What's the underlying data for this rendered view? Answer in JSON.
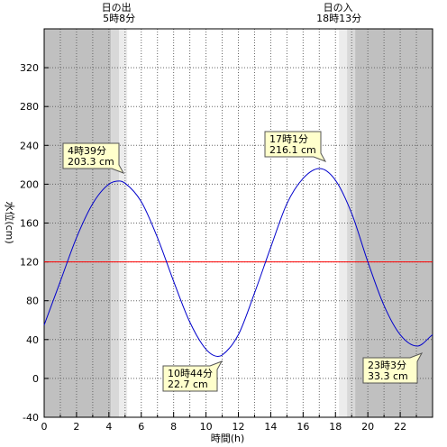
{
  "chart_data": {
    "type": "line",
    "xlabel": "時間(h)",
    "ylabel": "水位(cm)",
    "xlim": [
      0,
      24
    ],
    "ylim": [
      -40,
      360
    ],
    "xticks": [
      0,
      2,
      4,
      6,
      8,
      10,
      12,
      14,
      16,
      18,
      20,
      22
    ],
    "yticks": [
      -40,
      0,
      40,
      80,
      120,
      160,
      200,
      240,
      280,
      320
    ],
    "grid": true,
    "reference_line": {
      "value": 120,
      "color": "#ff0000"
    },
    "line_color": "#0000cc",
    "night_color": "#c0c0c0",
    "twilight_colors": [
      "#d8d8d8",
      "#ececec"
    ],
    "sunrise": {
      "label": "日の出",
      "time": "5時8分",
      "hour": 5.133
    },
    "sunset": {
      "label": "日の入",
      "time": "18時13分",
      "hour": 18.217
    },
    "extremes": [
      {
        "time": "4時39分",
        "value": "203.3 cm",
        "hour": 4.65,
        "level": 203.3
      },
      {
        "time": "10時44分",
        "value": "22.7 cm",
        "hour": 10.733,
        "level": 22.7
      },
      {
        "time": "17時1分",
        "value": "216.1 cm",
        "hour": 17.017,
        "level": 216.1
      },
      {
        "time": "23時3分",
        "value": "33.3 cm",
        "hour": 23.05,
        "level": 33.3
      }
    ],
    "series": [
      {
        "x": [
          0,
          1,
          2,
          3,
          4,
          4.65,
          5,
          6,
          7,
          8,
          9,
          10,
          10.733,
          11,
          12,
          13,
          14,
          15,
          16,
          17.017,
          18,
          19,
          20,
          21,
          22,
          23.05,
          24
        ],
        "y": [
          55,
          100,
          145,
          180,
          200,
          203.3,
          201,
          182,
          145,
          100,
          58,
          30,
          22.7,
          24,
          45,
          88,
          135,
          180,
          206,
          216.1,
          204,
          170,
          120,
          75,
          45,
          33.3,
          45
        ]
      }
    ]
  }
}
